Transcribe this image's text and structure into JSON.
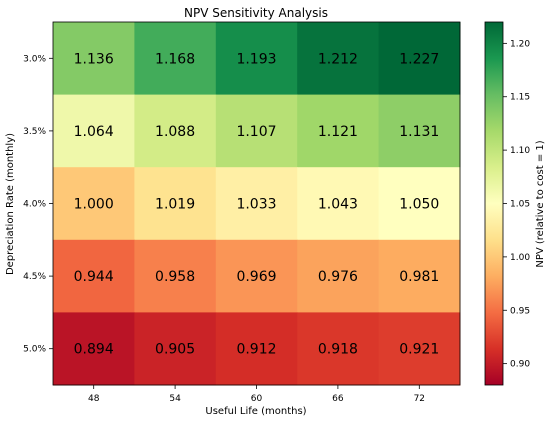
{
  "chart_data": {
    "type": "heatmap",
    "title": "NPV Sensitivity Analysis",
    "xlabel": "Useful Life (months)",
    "ylabel": "Depreciation Rate (monthly)",
    "x_categories": [
      "48",
      "54",
      "60",
      "66",
      "72"
    ],
    "y_categories": [
      "3.0%",
      "3.5%",
      "4.0%",
      "4.5%",
      "5.0%"
    ],
    "values": [
      [
        1.136,
        1.168,
        1.193,
        1.212,
        1.227
      ],
      [
        1.064,
        1.088,
        1.107,
        1.121,
        1.131
      ],
      [
        1.0,
        1.019,
        1.033,
        1.043,
        1.05
      ],
      [
        0.944,
        0.958,
        0.969,
        0.976,
        0.981
      ],
      [
        0.894,
        0.905,
        0.912,
        0.918,
        0.921
      ]
    ],
    "value_labels": [
      [
        "1.136",
        "1.168",
        "1.193",
        "1.212",
        "1.227"
      ],
      [
        "1.064",
        "1.088",
        "1.107",
        "1.121",
        "1.131"
      ],
      [
        "1.000",
        "1.019",
        "1.033",
        "1.043",
        "1.050"
      ],
      [
        "0.944",
        "0.958",
        "0.969",
        "0.976",
        "0.981"
      ],
      [
        "0.894",
        "0.905",
        "0.912",
        "0.918",
        "0.921"
      ]
    ],
    "colormap": "RdYlGn",
    "color_range": [
      0.88,
      1.22
    ],
    "colorbar": {
      "label": "NPV (relative to cost = 1)",
      "ticks": [
        0.9,
        0.95,
        1.0,
        1.05,
        1.1,
        1.15,
        1.2
      ],
      "tick_labels": [
        "0.90",
        "0.95",
        "1.00",
        "1.05",
        "1.10",
        "1.15",
        "1.20"
      ]
    },
    "grid": false
  }
}
